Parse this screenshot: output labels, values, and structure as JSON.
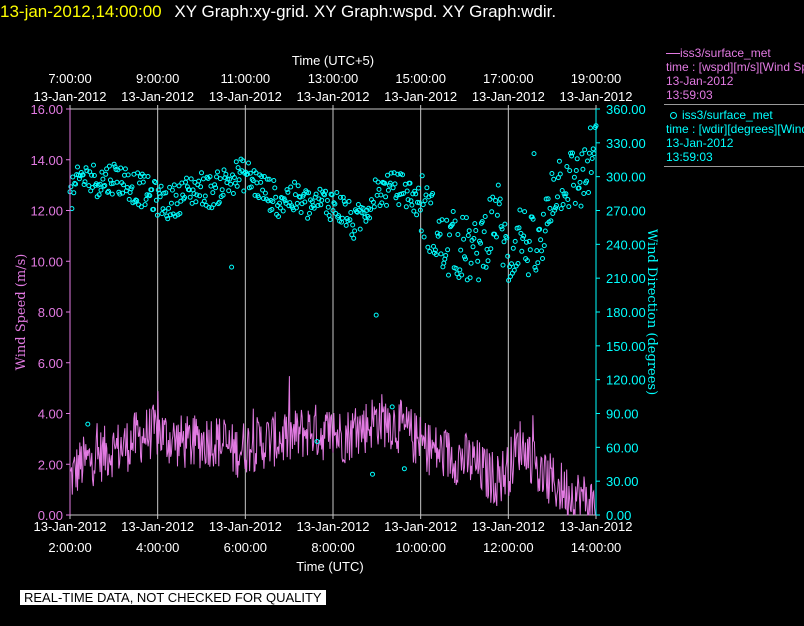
{
  "title": {
    "datetime": "13-jan-2012,14:00:00",
    "graphs": "XY Graph:xy-grid.  XY Graph:wspd.  XY Graph:wdir."
  },
  "legend": {
    "wspd": {
      "line1": "iss3/surface_met",
      "line2": "time : [wspd][m/s][Wind Speed]",
      "line3": "13-Jan-2012",
      "line4": "13:59:03"
    },
    "wdir": {
      "line1": "iss3/surface_met",
      "line2": "time : [wdir][degrees][Wind Direction]",
      "line3": "13-Jan-2012",
      "line4": "13:59:03"
    }
  },
  "disclaimer": "REAL-TIME DATA, NOT CHECKED FOR QUALITY",
  "colors": {
    "wspd": "#e27ae2",
    "wdir": "#00ffff",
    "grid": "#c8c8c8",
    "background": "#000000"
  },
  "chart_data": {
    "type": "scatter",
    "top_axis": {
      "title": "Time (UTC+5)",
      "ticks": [
        {
          "time": "7:00:00",
          "date": "13-Jan-2012"
        },
        {
          "time": "9:00:00",
          "date": "13-Jan-2012"
        },
        {
          "time": "11:00:00",
          "date": "13-Jan-2012"
        },
        {
          "time": "13:00:00",
          "date": "13-Jan-2012"
        },
        {
          "time": "15:00:00",
          "date": "13-Jan-2012"
        },
        {
          "time": "17:00:00",
          "date": "13-Jan-2012"
        },
        {
          "time": "19:00:00",
          "date": "13-Jan-2012"
        }
      ]
    },
    "bottom_axis": {
      "title": "Time (UTC)",
      "xlim_hours": [
        2,
        14
      ],
      "ticks": [
        {
          "hour": 2,
          "date": "13-Jan-2012",
          "time": "2:00:00"
        },
        {
          "hour": 4,
          "date": "13-Jan-2012",
          "time": "4:00:00"
        },
        {
          "hour": 6,
          "date": "13-Jan-2012",
          "time": "6:00:00"
        },
        {
          "hour": 8,
          "date": "13-Jan-2012",
          "time": "8:00:00"
        },
        {
          "hour": 10,
          "date": "13-Jan-2012",
          "time": "10:00:00"
        },
        {
          "hour": 12,
          "date": "13-Jan-2012",
          "time": "12:00:00"
        },
        {
          "hour": 14,
          "date": "13-Jan-2012",
          "time": "14:00:00"
        }
      ]
    },
    "left_axis": {
      "label": "Wind Speed (m/s)",
      "ylim": [
        0,
        16
      ],
      "ticks": [
        "0.00",
        "2.00",
        "4.00",
        "6.00",
        "8.00",
        "10.00",
        "12.00",
        "14.00",
        "16.00"
      ]
    },
    "right_axis": {
      "label": "Wind Direction (degrees)",
      "ylim": [
        0,
        360
      ],
      "ticks": [
        "0.00",
        "30.00",
        "60.00",
        "90.00",
        "120.00",
        "150.00",
        "180.00",
        "210.00",
        "240.00",
        "270.00",
        "300.00",
        "330.00",
        "360.00"
      ]
    },
    "series": [
      {
        "name": "wspd",
        "type": "line",
        "points": [
          [
            2.0,
            1.4
          ],
          [
            2.25,
            2.0
          ],
          [
            2.5,
            2.2
          ],
          [
            2.75,
            2.4
          ],
          [
            3.0,
            2.6
          ],
          [
            3.25,
            2.7
          ],
          [
            3.5,
            3.0
          ],
          [
            3.75,
            3.2
          ],
          [
            4.0,
            3.3
          ],
          [
            4.25,
            3.0
          ],
          [
            4.5,
            2.9
          ],
          [
            4.75,
            2.8
          ],
          [
            5.0,
            2.9
          ],
          [
            5.25,
            3.0
          ],
          [
            5.5,
            2.8
          ],
          [
            5.75,
            2.5
          ],
          [
            6.0,
            2.7
          ],
          [
            6.25,
            2.8
          ],
          [
            6.5,
            2.9
          ],
          [
            6.75,
            3.0
          ],
          [
            7.0,
            3.0
          ],
          [
            7.25,
            3.2
          ],
          [
            7.5,
            3.4
          ],
          [
            7.75,
            3.2
          ],
          [
            8.0,
            3.2
          ],
          [
            8.25,
            3.1
          ],
          [
            8.5,
            3.3
          ],
          [
            8.75,
            3.5
          ],
          [
            9.0,
            3.8
          ],
          [
            9.25,
            3.7
          ],
          [
            9.5,
            3.5
          ],
          [
            9.75,
            3.2
          ],
          [
            10.0,
            2.8
          ],
          [
            10.25,
            2.6
          ],
          [
            10.5,
            2.4
          ],
          [
            10.75,
            2.3
          ],
          [
            11.0,
            2.2
          ],
          [
            11.25,
            2.0
          ],
          [
            11.5,
            1.6
          ],
          [
            11.75,
            1.4
          ],
          [
            12.0,
            1.8
          ],
          [
            12.25,
            2.8
          ],
          [
            12.5,
            2.4
          ],
          [
            12.75,
            1.5
          ],
          [
            13.0,
            1.3
          ],
          [
            13.25,
            1.0
          ],
          [
            13.5,
            0.8
          ],
          [
            13.75,
            0.6
          ],
          [
            14.0,
            0.3
          ]
        ]
      },
      {
        "name": "wdir",
        "type": "scatter",
        "points": [
          [
            2.0,
            280
          ],
          [
            2.25,
            300
          ],
          [
            2.5,
            298
          ],
          [
            2.75,
            296
          ],
          [
            3.0,
            300
          ],
          [
            3.25,
            296
          ],
          [
            3.5,
            290
          ],
          [
            3.75,
            286
          ],
          [
            4.0,
            280
          ],
          [
            4.25,
            276
          ],
          [
            4.5,
            282
          ],
          [
            4.75,
            288
          ],
          [
            5.0,
            290
          ],
          [
            5.25,
            286
          ],
          [
            5.5,
            294
          ],
          [
            5.75,
            300
          ],
          [
            6.0,
            302
          ],
          [
            6.25,
            294
          ],
          [
            6.5,
            286
          ],
          [
            6.75,
            280
          ],
          [
            7.0,
            282
          ],
          [
            7.25,
            278
          ],
          [
            7.5,
            274
          ],
          [
            7.75,
            278
          ],
          [
            8.0,
            276
          ],
          [
            8.25,
            270
          ],
          [
            8.5,
            256
          ],
          [
            8.75,
            272
          ],
          [
            9.0,
            286
          ],
          [
            9.25,
            288
          ],
          [
            9.5,
            290
          ],
          [
            9.75,
            284
          ],
          [
            10.0,
            276
          ],
          [
            10.25,
            260
          ],
          [
            10.5,
            236
          ],
          [
            10.75,
            240
          ],
          [
            11.0,
            236
          ],
          [
            11.25,
            230
          ],
          [
            11.5,
            250
          ],
          [
            11.75,
            270
          ],
          [
            12.0,
            224
          ],
          [
            12.25,
            252
          ],
          [
            12.5,
            236
          ],
          [
            12.75,
            232
          ],
          [
            13.0,
            290
          ],
          [
            13.25,
            300
          ],
          [
            13.5,
            296
          ],
          [
            13.75,
            300
          ],
          [
            14.0,
            330
          ]
        ]
      }
    ]
  }
}
